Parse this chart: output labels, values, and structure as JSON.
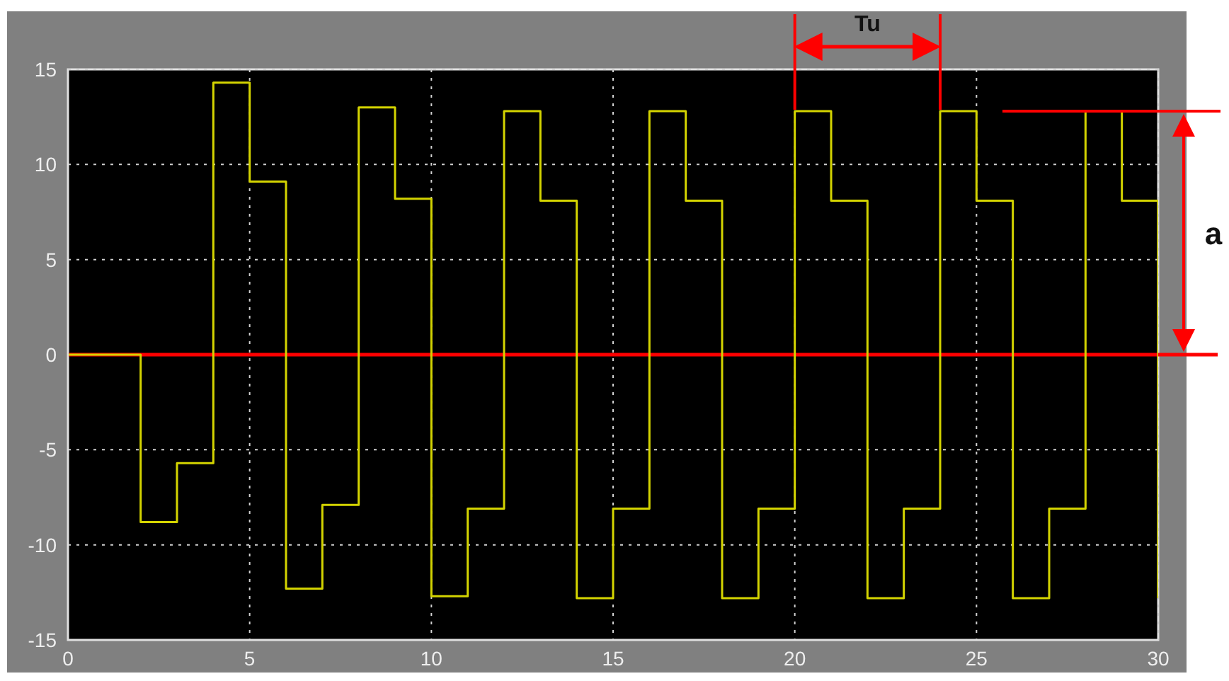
{
  "chart_data": {
    "type": "step",
    "x": [
      0,
      1,
      2,
      3,
      4,
      5,
      6,
      7,
      8,
      9,
      10,
      11,
      12,
      13,
      14,
      15,
      16,
      17,
      18,
      19,
      20,
      21,
      22,
      23,
      24,
      25,
      26,
      27,
      28,
      29,
      30
    ],
    "series": [
      {
        "color": "#d4d400",
        "values": [
          0,
          0,
          -8.8,
          -5.7,
          14.3,
          9.1,
          -12.3,
          -7.9,
          13,
          8.2,
          -12.7,
          -8.1,
          12.8,
          8.1,
          -12.8,
          -8.1,
          12.8,
          8.1,
          -12.8,
          -8.1,
          12.8,
          8.1,
          -12.8,
          -8.1,
          12.8,
          8.1,
          -12.8,
          -8.1,
          12.8,
          8.1,
          -12.8
        ]
      }
    ],
    "xlim": [
      0,
      30
    ],
    "xticks": [
      0,
      5,
      10,
      15,
      20,
      25,
      30
    ],
    "ylim": [
      -15,
      15
    ],
    "yticks": [
      -15,
      -10,
      -5,
      0,
      5,
      10,
      15
    ],
    "grid": true,
    "marker": "none",
    "line_style": "solid",
    "ref_lines": [
      {
        "axis": "y",
        "value": 0,
        "color": "#ff0000"
      }
    ],
    "annotations": [
      "Tu",
      "a"
    ]
  }
}
